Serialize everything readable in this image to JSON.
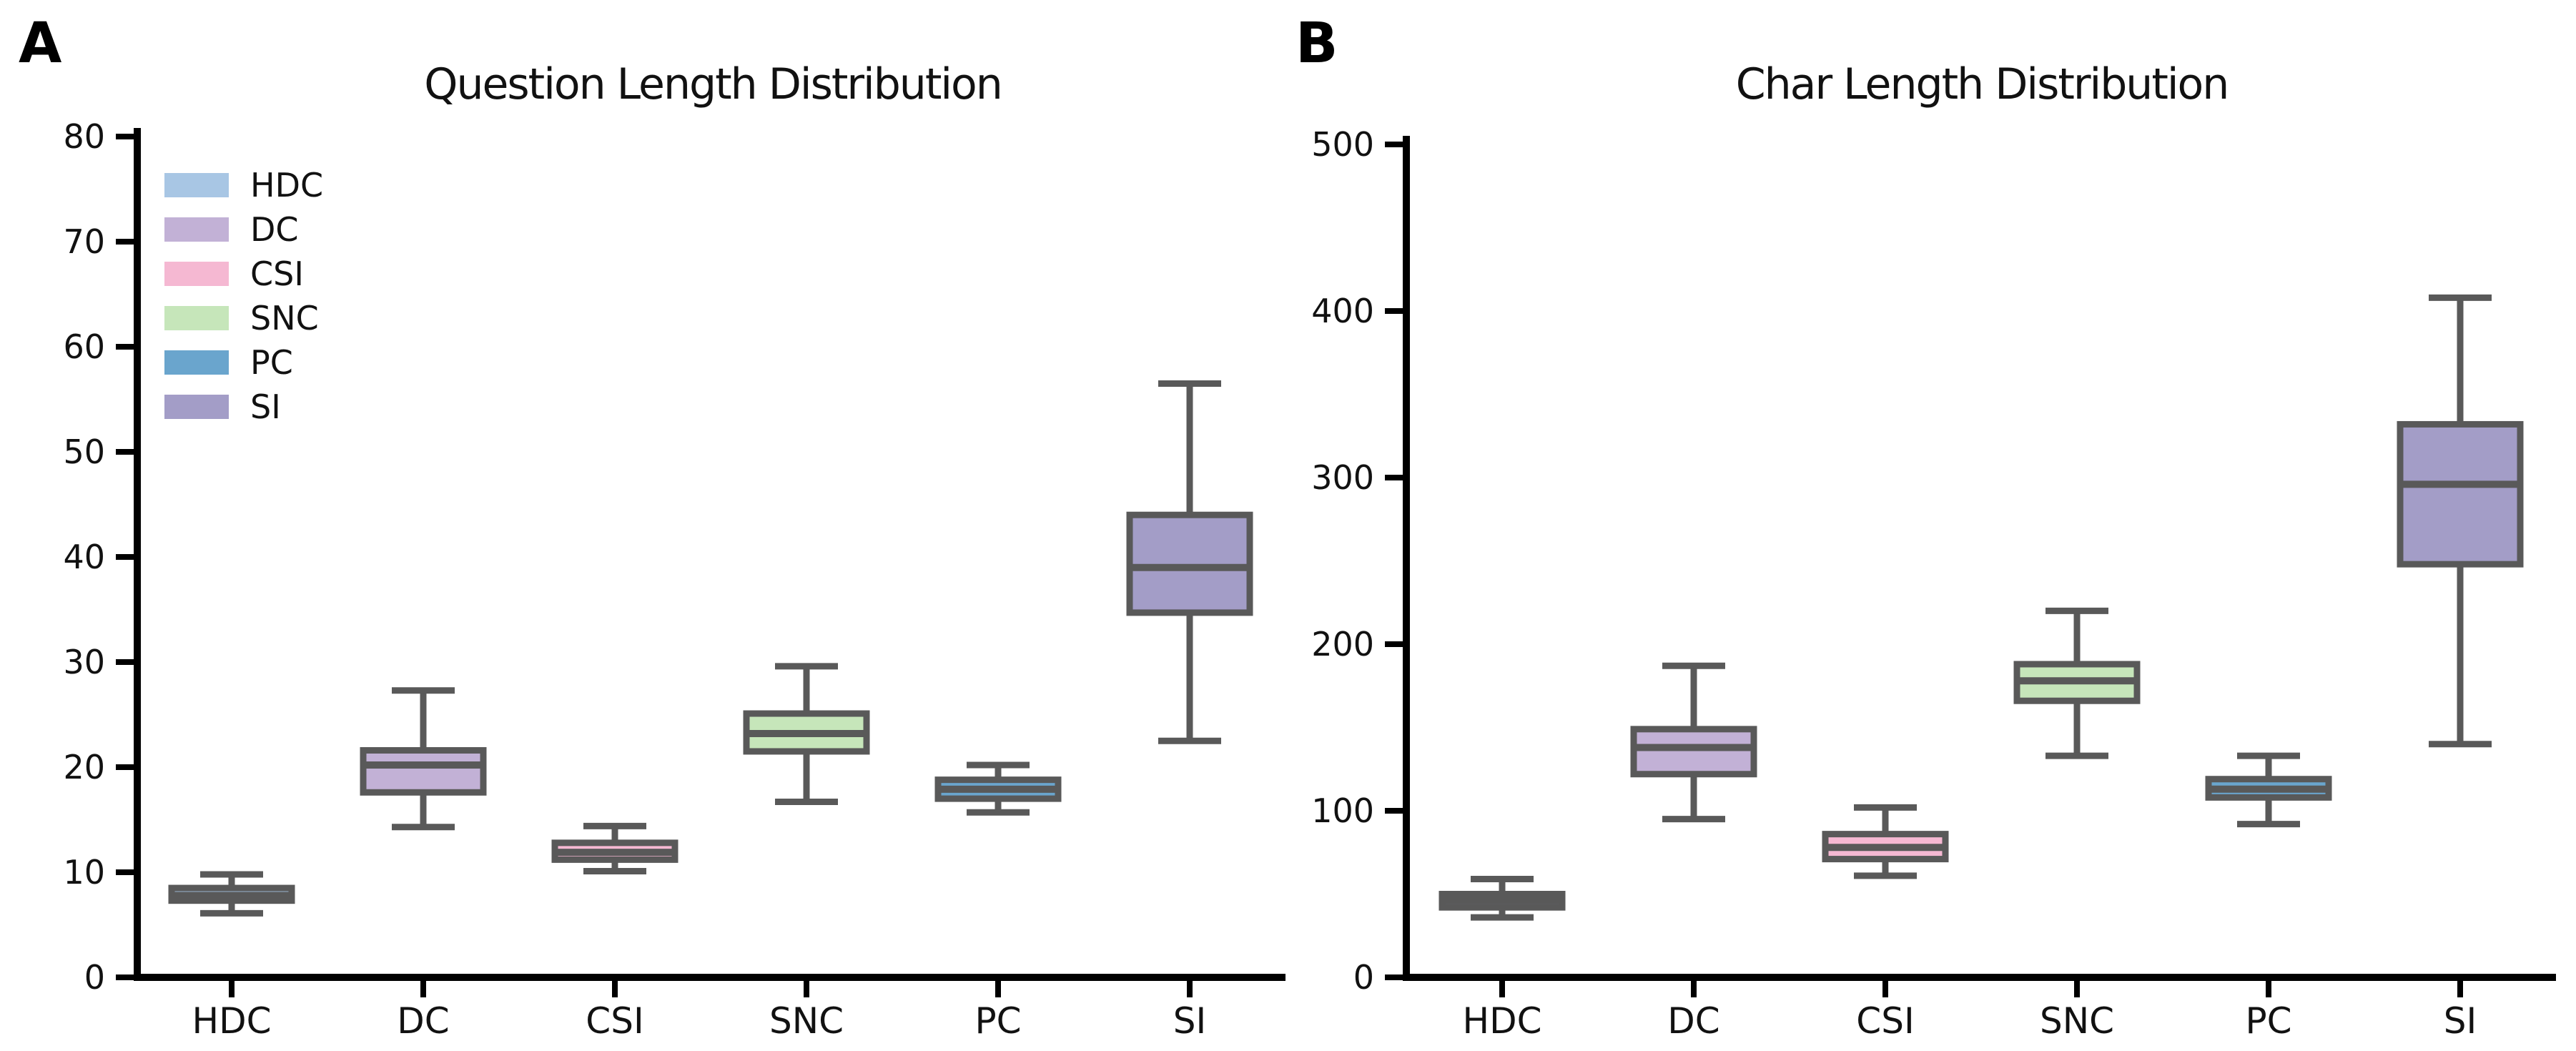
{
  "figure": {
    "panel_a_label": "A",
    "panel_b_label": "B"
  },
  "colors": {
    "box_edge": "#595959",
    "whisker": "#595959",
    "axis": "#000000",
    "text": "#111111"
  },
  "legend": {
    "location": "upper left of panel A",
    "items": [
      {
        "label": "HDC",
        "color": "#a8c6e4"
      },
      {
        "label": "DC",
        "color": "#c2b1d6"
      },
      {
        "label": "CSI",
        "color": "#f5b8d2"
      },
      {
        "label": "SNC",
        "color": "#c6e6ba"
      },
      {
        "label": "PC",
        "color": "#6aa5cd"
      },
      {
        "label": "SI",
        "color": "#a39dc7"
      }
    ]
  },
  "chart_data": [
    {
      "type": "box",
      "panel": "A",
      "title": "Question Length Distribution",
      "categories": [
        "HDC",
        "DC",
        "CSI",
        "SNC",
        "PC",
        "SI"
      ],
      "ylim": [
        0,
        80
      ],
      "ytick_step": 10,
      "grid": false,
      "legend_position": "upper-left",
      "series": [
        {
          "name": "HDC",
          "color": "#a8c6e4",
          "whislo": 6.1,
          "q1": 7.3,
          "med": 7.8,
          "q3": 8.5,
          "whishi": 9.8
        },
        {
          "name": "DC",
          "color": "#c2b1d6",
          "whislo": 14.3,
          "q1": 17.6,
          "med": 20.2,
          "q3": 21.6,
          "whishi": 27.3
        },
        {
          "name": "CSI",
          "color": "#f5b8d2",
          "whislo": 10.1,
          "q1": 11.2,
          "med": 11.9,
          "q3": 12.8,
          "whishi": 14.4
        },
        {
          "name": "SNC",
          "color": "#c6e6ba",
          "whislo": 16.7,
          "q1": 21.5,
          "med": 23.2,
          "q3": 25.1,
          "whishi": 29.6
        },
        {
          "name": "PC",
          "color": "#6aa5cd",
          "whislo": 15.7,
          "q1": 17.0,
          "med": 17.9,
          "q3": 18.8,
          "whishi": 20.2
        },
        {
          "name": "SI",
          "color": "#a39dc7",
          "whislo": 22.5,
          "q1": 34.7,
          "med": 39.0,
          "q3": 44.0,
          "whishi": 56.5
        }
      ]
    },
    {
      "type": "box",
      "panel": "B",
      "title": "Char Length Distribution",
      "categories": [
        "HDC",
        "DC",
        "CSI",
        "SNC",
        "PC",
        "SI"
      ],
      "ylim": [
        0,
        500
      ],
      "ytick_step": 100,
      "grid": false,
      "legend_position": "none",
      "series": [
        {
          "name": "HDC",
          "color": "#a8c6e4",
          "whislo": 36,
          "q1": 42,
          "med": 46,
          "q3": 50,
          "whishi": 59
        },
        {
          "name": "DC",
          "color": "#c2b1d6",
          "whislo": 95,
          "q1": 122,
          "med": 138,
          "q3": 149,
          "whishi": 187
        },
        {
          "name": "CSI",
          "color": "#f5b8d2",
          "whislo": 61,
          "q1": 71,
          "med": 78,
          "q3": 86,
          "whishi": 102
        },
        {
          "name": "SNC",
          "color": "#c6e6ba",
          "whislo": 133,
          "q1": 166,
          "med": 178,
          "q3": 188,
          "whishi": 220
        },
        {
          "name": "PC",
          "color": "#6aa5cd",
          "whislo": 92,
          "q1": 108,
          "med": 113,
          "q3": 119,
          "whishi": 133
        },
        {
          "name": "SI",
          "color": "#a39dc7",
          "whislo": 140,
          "q1": 248,
          "med": 296,
          "q3": 332,
          "whishi": 408
        }
      ]
    }
  ]
}
